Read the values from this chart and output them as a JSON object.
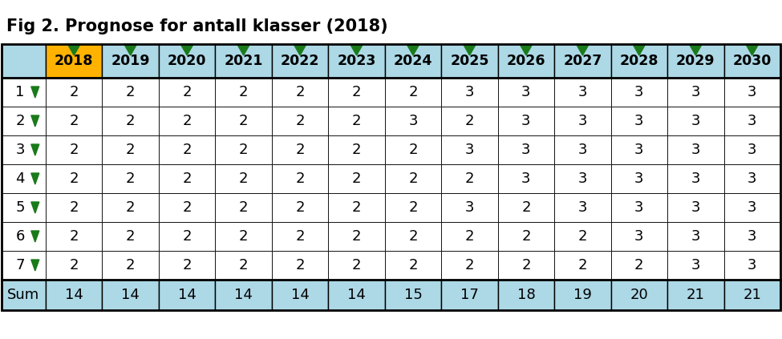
{
  "title": "Fig 2. Prognose for antall klasser (2018)",
  "years": [
    "2018",
    "2019",
    "2020",
    "2021",
    "2022",
    "2023",
    "2024",
    "2025",
    "2026",
    "2027",
    "2028",
    "2029",
    "2030"
  ],
  "grades": [
    "1",
    "2",
    "3",
    "4",
    "5",
    "6",
    "7"
  ],
  "table_data": [
    [
      2,
      2,
      2,
      2,
      2,
      2,
      2,
      3,
      3,
      3,
      3,
      3,
      3
    ],
    [
      2,
      2,
      2,
      2,
      2,
      2,
      3,
      2,
      3,
      3,
      3,
      3,
      3
    ],
    [
      2,
      2,
      2,
      2,
      2,
      2,
      2,
      3,
      3,
      3,
      3,
      3,
      3
    ],
    [
      2,
      2,
      2,
      2,
      2,
      2,
      2,
      2,
      3,
      3,
      3,
      3,
      3
    ],
    [
      2,
      2,
      2,
      2,
      2,
      2,
      2,
      3,
      2,
      3,
      3,
      3,
      3
    ],
    [
      2,
      2,
      2,
      2,
      2,
      2,
      2,
      2,
      2,
      2,
      3,
      3,
      3
    ],
    [
      2,
      2,
      2,
      2,
      2,
      2,
      2,
      2,
      2,
      2,
      2,
      3,
      3
    ]
  ],
  "sum_row": [
    14,
    14,
    14,
    14,
    14,
    14,
    15,
    17,
    18,
    19,
    20,
    21,
    21
  ],
  "header_bg_default": "#add8e6",
  "header_bg_2018": "#FFB300",
  "sum_bg": "#add8e6",
  "border_color": "#000000",
  "green_color": "#1a7a1a",
  "title_fontsize": 15,
  "header_fontsize": 12.5,
  "cell_fontsize": 13
}
